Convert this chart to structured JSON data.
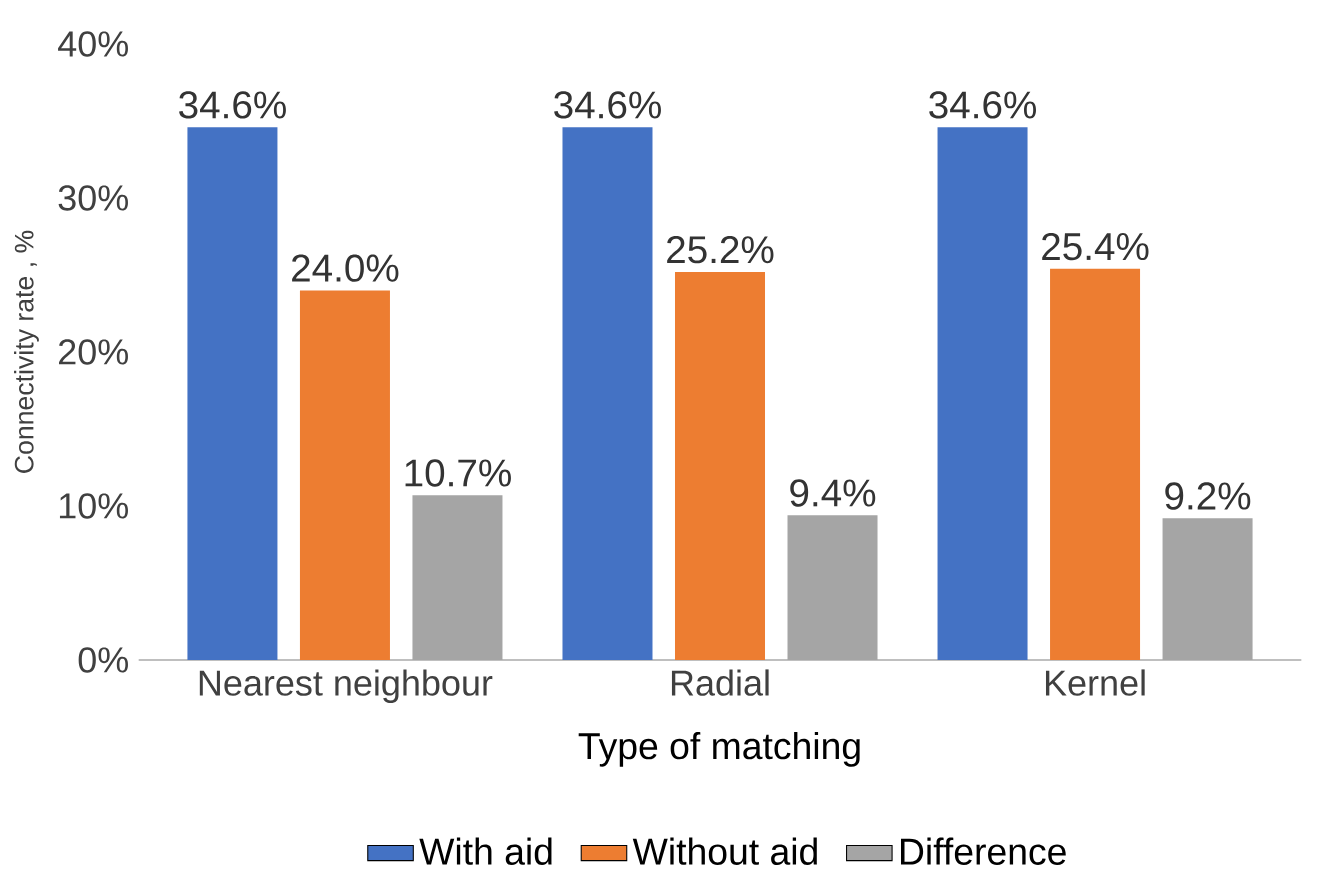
{
  "chart_data": {
    "type": "bar",
    "xlabel": "Type of matching",
    "ylabel": "Connectivity rate , %",
    "categories": [
      "Nearest neighbour",
      "Radial",
      "Kernel"
    ],
    "series": [
      {
        "name": "With aid",
        "color": "#4472c4",
        "values": [
          34.6,
          34.6,
          34.6
        ],
        "value_labels": [
          "34.6%",
          "34.6%",
          "34.6%"
        ]
      },
      {
        "name": "Without aid",
        "color": "#ed7d31",
        "values": [
          24.0,
          25.2,
          25.4
        ],
        "value_labels": [
          "24.0%",
          "25.2%",
          "25.4%"
        ]
      },
      {
        "name": "Difference",
        "color": "#a5a5a5",
        "values": [
          10.7,
          9.4,
          9.2
        ],
        "value_labels": [
          "10.7%",
          "9.4%",
          "9.2%"
        ]
      }
    ],
    "ylim": [
      0,
      40
    ],
    "yticks": [
      {
        "value": 0,
        "label": "0%"
      },
      {
        "value": 10,
        "label": "10%"
      },
      {
        "value": 20,
        "label": "20%"
      },
      {
        "value": 30,
        "label": "30%"
      },
      {
        "value": 40,
        "label": "40%"
      }
    ],
    "grid": false,
    "legend": "bottom"
  }
}
